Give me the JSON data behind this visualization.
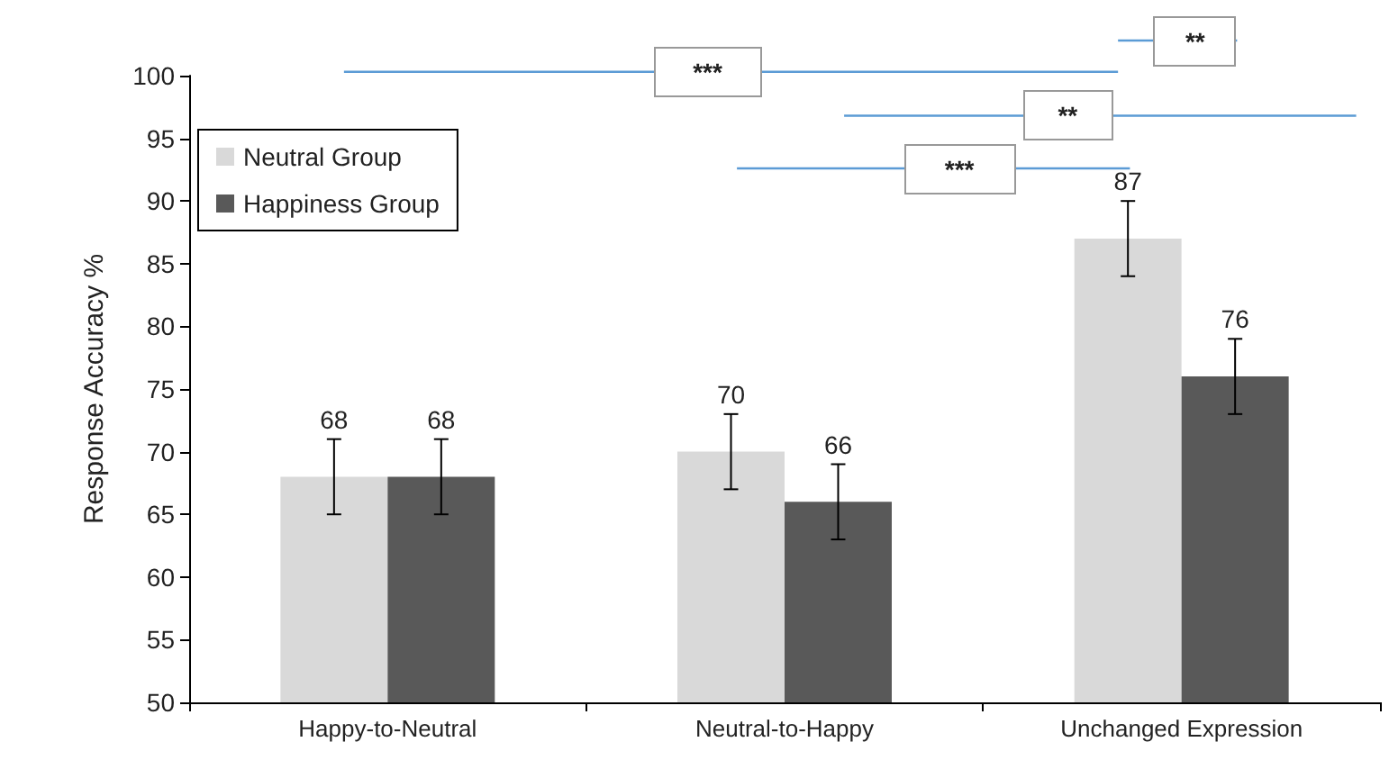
{
  "chart_data": {
    "type": "bar",
    "ylabel": "Response Accuracy %",
    "categories": [
      "Happy-to-Neutral",
      "Neutral-to-Happy",
      "Unchanged Expression"
    ],
    "series": [
      {
        "name": "Neutral Group",
        "color": "#d9d9d9",
        "values": [
          68,
          70,
          87
        ],
        "errors": [
          3,
          3,
          3
        ]
      },
      {
        "name": "Happiness Group",
        "color": "#595959",
        "values": [
          68,
          66,
          76
        ],
        "errors": [
          3,
          3,
          3
        ]
      }
    ],
    "ylim": [
      50,
      100
    ],
    "yticks": [
      50,
      55,
      60,
      65,
      70,
      75,
      80,
      85,
      90,
      95,
      100
    ],
    "grid": false,
    "legend": "top left",
    "data_labels": true,
    "annotations": [
      "***",
      "**",
      "***",
      "**"
    ]
  }
}
